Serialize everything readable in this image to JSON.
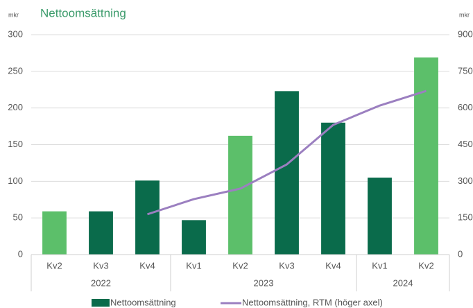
{
  "chart_data": {
    "type": "bar",
    "title": "Nettoomsättning",
    "y_unit": "mkr",
    "y2_unit": "mkr",
    "categories": [
      "Kv2",
      "Kv3",
      "Kv4",
      "Kv1",
      "Kv2",
      "Kv3",
      "Kv4",
      "Kv1",
      "Kv2"
    ],
    "groups": [
      {
        "label": "2022",
        "count": 3
      },
      {
        "label": "2023",
        "count": 4
      },
      {
        "label": "2024",
        "count": 2
      }
    ],
    "series": [
      {
        "name": "Nettoomsättning",
        "type": "bar",
        "color": "#0a6b4b",
        "bar_colors": [
          "#5cbf6a",
          "#0a6b4b",
          "#0a6b4b",
          "#0a6b4b",
          "#5cbf6a",
          "#0a6b4b",
          "#0a6b4b",
          "#0a6b4b",
          "#5cbf6a"
        ],
        "values": [
          59,
          59,
          101,
          47,
          162,
          223,
          180,
          105,
          269
        ]
      },
      {
        "name": "Nettoomsättning, RTM (höger axel)",
        "type": "line",
        "axis": "y2",
        "color": "#9b7fc0",
        "values": [
          null,
          null,
          165,
          227,
          270,
          369,
          531,
          610,
          670
        ]
      }
    ],
    "ylim": [
      0,
      300
    ],
    "yticks": [
      0,
      50,
      100,
      150,
      200,
      250,
      300
    ],
    "y2lim": [
      0,
      900
    ],
    "y2ticks": [
      0,
      150,
      300,
      450,
      600,
      750,
      900
    ],
    "grid": true,
    "legend": "bottom"
  }
}
